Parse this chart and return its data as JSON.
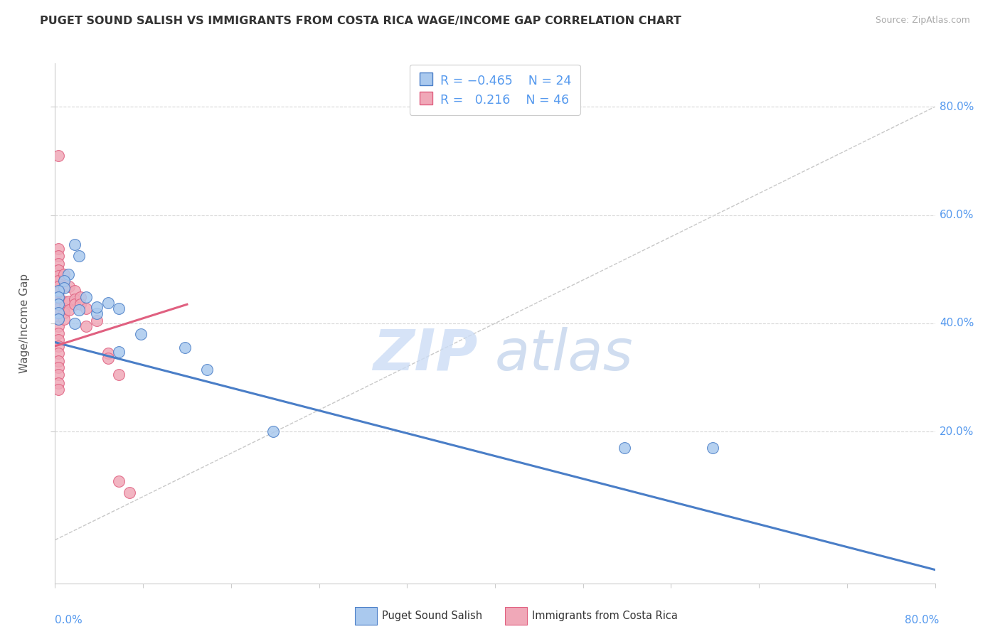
{
  "title": "PUGET SOUND SALISH VS IMMIGRANTS FROM COSTA RICA WAGE/INCOME GAP CORRELATION CHART",
  "source": "Source: ZipAtlas.com",
  "ylabel": "Wage/Income Gap",
  "watermark_zip": "ZIP",
  "watermark_atlas": "atlas",
  "legend_labels": [
    "Puget Sound Salish",
    "Immigrants from Costa Rica"
  ],
  "color_blue": "#aac9ee",
  "color_pink": "#f0a8b8",
  "color_blue_dark": "#4a7ec7",
  "color_pink_dark": "#e06080",
  "color_dashed": "#c8c8c8",
  "color_tick": "#5599ee",
  "xlim": [
    0.0,
    0.8
  ],
  "ylim": [
    -0.08,
    0.88
  ],
  "blue_points": [
    [
      0.018,
      0.545
    ],
    [
      0.022,
      0.525
    ],
    [
      0.012,
      0.49
    ],
    [
      0.008,
      0.478
    ],
    [
      0.008,
      0.465
    ],
    [
      0.003,
      0.46
    ],
    [
      0.003,
      0.448
    ],
    [
      0.003,
      0.435
    ],
    [
      0.003,
      0.42
    ],
    [
      0.003,
      0.408
    ],
    [
      0.022,
      0.425
    ],
    [
      0.028,
      0.448
    ],
    [
      0.038,
      0.418
    ],
    [
      0.038,
      0.43
    ],
    [
      0.018,
      0.4
    ],
    [
      0.048,
      0.438
    ],
    [
      0.058,
      0.428
    ],
    [
      0.058,
      0.348
    ],
    [
      0.078,
      0.38
    ],
    [
      0.118,
      0.355
    ],
    [
      0.138,
      0.315
    ],
    [
      0.198,
      0.2
    ],
    [
      0.518,
      0.17
    ],
    [
      0.598,
      0.17
    ]
  ],
  "pink_points": [
    [
      0.003,
      0.71
    ],
    [
      0.003,
      0.538
    ],
    [
      0.003,
      0.525
    ],
    [
      0.003,
      0.51
    ],
    [
      0.003,
      0.498
    ],
    [
      0.003,
      0.488
    ],
    [
      0.003,
      0.478
    ],
    [
      0.003,
      0.468
    ],
    [
      0.003,
      0.458
    ],
    [
      0.003,
      0.448
    ],
    [
      0.003,
      0.438
    ],
    [
      0.003,
      0.428
    ],
    [
      0.003,
      0.418
    ],
    [
      0.003,
      0.408
    ],
    [
      0.003,
      0.395
    ],
    [
      0.003,
      0.382
    ],
    [
      0.003,
      0.37
    ],
    [
      0.003,
      0.358
    ],
    [
      0.003,
      0.345
    ],
    [
      0.003,
      0.33
    ],
    [
      0.003,
      0.318
    ],
    [
      0.003,
      0.305
    ],
    [
      0.003,
      0.29
    ],
    [
      0.003,
      0.278
    ],
    [
      0.008,
      0.49
    ],
    [
      0.008,
      0.468
    ],
    [
      0.008,
      0.44
    ],
    [
      0.008,
      0.428
    ],
    [
      0.008,
      0.42
    ],
    [
      0.008,
      0.408
    ],
    [
      0.013,
      0.468
    ],
    [
      0.013,
      0.44
    ],
    [
      0.013,
      0.425
    ],
    [
      0.018,
      0.46
    ],
    [
      0.018,
      0.445
    ],
    [
      0.018,
      0.435
    ],
    [
      0.023,
      0.448
    ],
    [
      0.023,
      0.435
    ],
    [
      0.028,
      0.428
    ],
    [
      0.028,
      0.395
    ],
    [
      0.038,
      0.405
    ],
    [
      0.048,
      0.345
    ],
    [
      0.048,
      0.335
    ],
    [
      0.058,
      0.305
    ],
    [
      0.058,
      0.108
    ],
    [
      0.068,
      0.088
    ]
  ],
  "blue_trend": [
    0.0,
    0.365,
    0.8,
    -0.055
  ],
  "pink_trend": [
    0.0,
    0.358,
    0.12,
    0.435
  ],
  "diag_dashed": [
    0.0,
    0.0,
    0.8,
    0.8
  ],
  "yticks_right": [
    0.2,
    0.4,
    0.6,
    0.8
  ],
  "ytick_labels_right": [
    "20.0%",
    "40.0%",
    "60.0%",
    "80.0%"
  ]
}
